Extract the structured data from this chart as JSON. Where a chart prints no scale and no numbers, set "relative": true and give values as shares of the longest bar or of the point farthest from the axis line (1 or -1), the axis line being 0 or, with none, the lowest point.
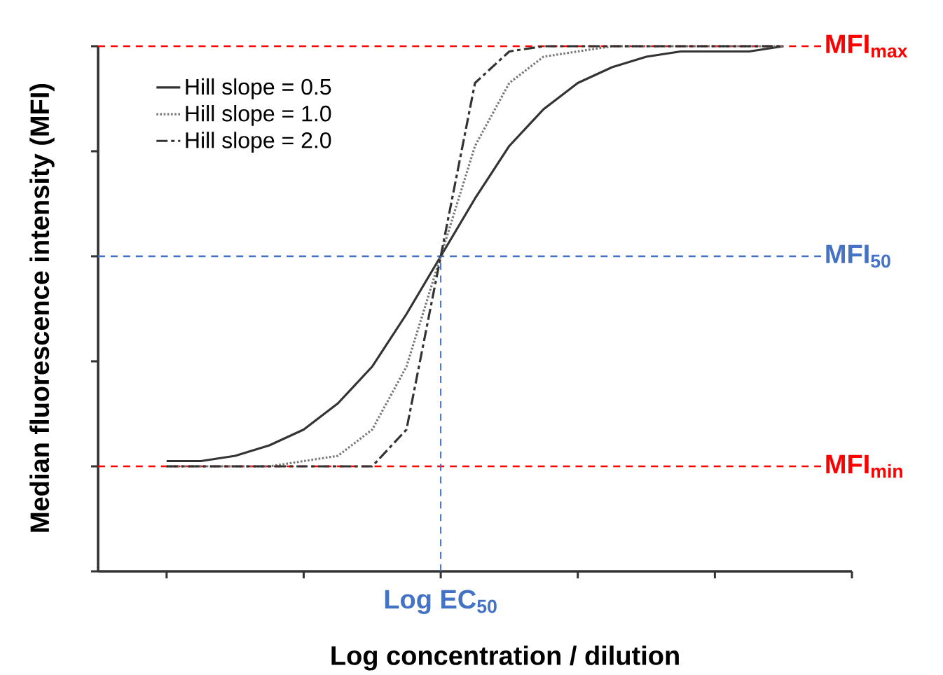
{
  "chart_data": {
    "type": "line",
    "relative": true,
    "xlabel": "Log concentration / dilution",
    "ylabel": "Median fluorescence intensity (MFI)",
    "categories": [
      null,
      null,
      null,
      null,
      null,
      null,
      null,
      null,
      null,
      null,
      null,
      null,
      null,
      null,
      null,
      null,
      null,
      null,
      null
    ],
    "series": [
      {
        "name": "Hill slope = 0.5",
        "color": "#333333",
        "line_style": "solid",
        "values": [
          0.21,
          0.21,
          0.22,
          0.24,
          0.27,
          0.32,
          0.39,
          0.49,
          0.6,
          0.71,
          0.81,
          0.88,
          0.93,
          0.96,
          0.98,
          0.99,
          0.99,
          0.99,
          1.0
        ]
      },
      {
        "name": "Hill slope = 1.0",
        "color": "#777777",
        "line_style": "dotted",
        "values": [
          0.2,
          0.2,
          0.2,
          0.2,
          0.21,
          0.22,
          0.27,
          0.39,
          0.6,
          0.81,
          0.93,
          0.98,
          0.99,
          1.0,
          1.0,
          1.0,
          1.0,
          1.0,
          1.0
        ]
      },
      {
        "name": "Hill slope = 2.0",
        "color": "#333333",
        "line_style": "dashed",
        "values": [
          0.2,
          0.2,
          0.2,
          0.2,
          0.2,
          0.2,
          0.2,
          0.27,
          0.6,
          0.93,
          0.99,
          1.0,
          1.0,
          1.0,
          1.0,
          1.0,
          1.0,
          1.0,
          1.0
        ]
      }
    ],
    "ref_lines": [
      {
        "axis": "y",
        "value": 1,
        "label": "MFI$_{max}$",
        "color": "#ff0000",
        "line_style": "dashed"
      },
      {
        "axis": "y",
        "value": 0.6,
        "label": "MFI$_{50}$",
        "color": "#4472c4",
        "line_style": "dashed"
      },
      {
        "axis": "y",
        "value": 0.2,
        "label": "MFI$_{min}$",
        "color": "#ff0000",
        "line_style": "dashed"
      }
    ],
    "annotations": [
      "Log EC$_{50}$"
    ],
    "legend": "top left"
  }
}
